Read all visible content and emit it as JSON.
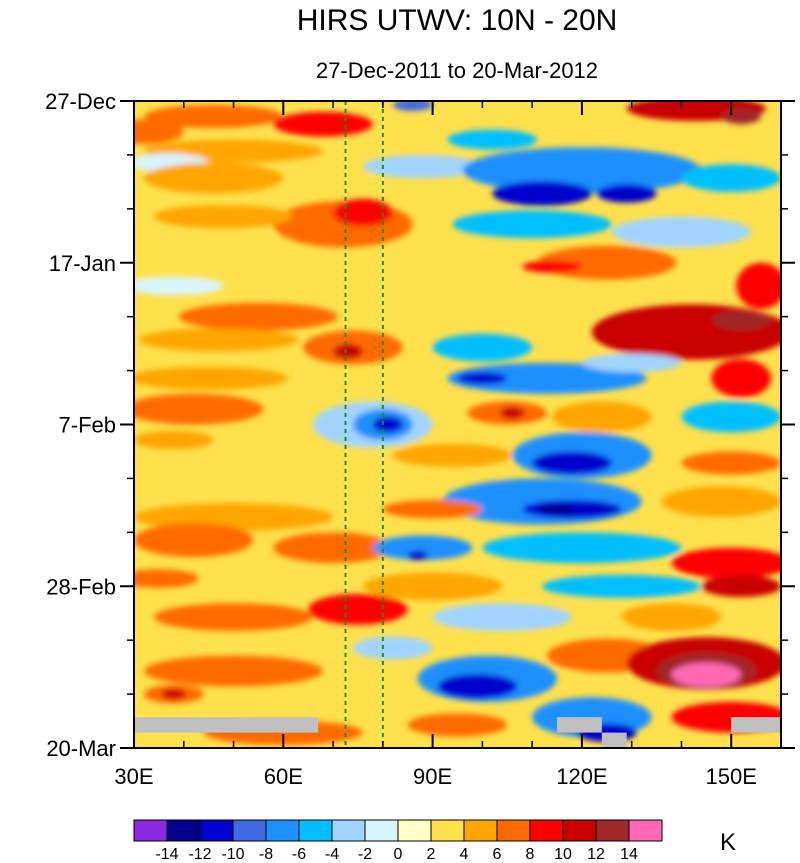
{
  "chart_data": {
    "type": "heatmap",
    "title": "HIRS UTWV: 10N - 20N",
    "subtitle": "27-Dec-2011 to 20-Mar-2012",
    "xlabel": "",
    "ylabel": "",
    "xlim": [
      30,
      160
    ],
    "ylim_days": [
      0,
      84
    ],
    "y_direction": "downward in time (27-Dec at top, 20-Mar at bottom)",
    "x_ticks": [
      {
        "value": 30,
        "label": "30E"
      },
      {
        "value": 60,
        "label": "60E"
      },
      {
        "value": 90,
        "label": "90E"
      },
      {
        "value": 120,
        "label": "120E"
      },
      {
        "value": 150,
        "label": "150E"
      }
    ],
    "y_ticks": [
      {
        "day": 0,
        "label": "27-Dec"
      },
      {
        "day": 21,
        "label": "17-Jan"
      },
      {
        "day": 42,
        "label": "7-Feb"
      },
      {
        "day": 63,
        "label": "28-Feb"
      },
      {
        "day": 84,
        "label": "20-Mar"
      }
    ],
    "reference_lines": [
      {
        "longitude": 72.5,
        "style": "dashed",
        "color": "#228b22"
      },
      {
        "longitude": 80.0,
        "style": "dashed",
        "color": "#228b22"
      }
    ],
    "colorbar": {
      "units": "K",
      "levels": [
        -14,
        -12,
        -10,
        -8,
        -6,
        -4,
        -2,
        0,
        2,
        4,
        6,
        8,
        10,
        12,
        14
      ],
      "colors": [
        "#8a2be2",
        "#00008b",
        "#0000cd",
        "#4169e1",
        "#1e90ff",
        "#00bfff",
        "#a0d4ff",
        "#d6f5ff",
        "#ffffcc",
        "#ffe14d",
        "#ffa500",
        "#ff6a00",
        "#ff0000",
        "#c80000",
        "#a02828",
        "#ff69b4"
      ]
    },
    "missing_color": "#c0c0c0",
    "missing_regions": [
      {
        "lon": [
          30,
          67
        ],
        "day": [
          80,
          82
        ]
      },
      {
        "lon": [
          115,
          124
        ],
        "day": [
          80,
          82
        ]
      },
      {
        "lon": [
          124,
          129
        ],
        "day": [
          82,
          84
        ]
      },
      {
        "lon": [
          150,
          160
        ],
        "day": [
          80,
          82
        ]
      }
    ],
    "features": [
      {
        "lon": 32,
        "day": 4,
        "rx": 8,
        "ry": 1.6,
        "value": 6
      },
      {
        "lon": 46,
        "day": 2,
        "rx": 14,
        "ry": 1.5,
        "value": 6
      },
      {
        "lon": 68,
        "day": 3,
        "rx": 10,
        "ry": 1.6,
        "value": 8
      },
      {
        "lon": 86,
        "day": 0.5,
        "rx": 4,
        "ry": 0.8,
        "value": -10
      },
      {
        "lon": 102,
        "day": 5,
        "rx": 9,
        "ry": 1.3,
        "value": -6
      },
      {
        "lon": 143,
        "day": 1,
        "rx": 14,
        "ry": 1.6,
        "value": 10
      },
      {
        "lon": 152,
        "day": 2,
        "rx": 4,
        "ry": 1,
        "value": 12
      },
      {
        "lon": 50,
        "day": 6.5,
        "rx": 18,
        "ry": 1.5,
        "value": 4
      },
      {
        "lon": 37,
        "day": 8,
        "rx": 8,
        "ry": 1.2,
        "value": -2
      },
      {
        "lon": 88,
        "day": 8.5,
        "rx": 12,
        "ry": 1.5,
        "value": -4
      },
      {
        "lon": 120,
        "day": 9,
        "rx": 24,
        "ry": 3,
        "value": -8
      },
      {
        "lon": 112,
        "day": 12,
        "rx": 10,
        "ry": 1.6,
        "value": -12
      },
      {
        "lon": 129,
        "day": 12,
        "rx": 6,
        "ry": 1.2,
        "value": -12
      },
      {
        "lon": 46,
        "day": 10,
        "rx": 14,
        "ry": 2,
        "value": 4
      },
      {
        "lon": 72,
        "day": 16,
        "rx": 14,
        "ry": 3,
        "value": 6
      },
      {
        "lon": 76,
        "day": 14.5,
        "rx": 6,
        "ry": 1.8,
        "value": 8
      },
      {
        "lon": 48,
        "day": 15,
        "rx": 14,
        "ry": 1.5,
        "value": 4
      },
      {
        "lon": 110,
        "day": 16,
        "rx": 16,
        "ry": 1.8,
        "value": -6
      },
      {
        "lon": 140,
        "day": 17,
        "rx": 14,
        "ry": 2,
        "value": -4
      },
      {
        "lon": 150,
        "day": 10,
        "rx": 10,
        "ry": 1.8,
        "value": -6
      },
      {
        "lon": 125,
        "day": 21,
        "rx": 14,
        "ry": 2.2,
        "value": 6
      },
      {
        "lon": 114,
        "day": 21.5,
        "rx": 6,
        "ry": 0.8,
        "value": 8
      },
      {
        "lon": 38,
        "day": 24,
        "rx": 10,
        "ry": 1.2,
        "value": -2
      },
      {
        "lon": 156,
        "day": 24,
        "rx": 5,
        "ry": 3,
        "value": 8
      },
      {
        "lon": 55,
        "day": 28,
        "rx": 16,
        "ry": 1.8,
        "value": 6
      },
      {
        "lon": 74,
        "day": 32,
        "rx": 10,
        "ry": 2.2,
        "value": 6
      },
      {
        "lon": 73,
        "day": 32.5,
        "rx": 3,
        "ry": 1,
        "value": 10
      },
      {
        "lon": 47,
        "day": 31,
        "rx": 16,
        "ry": 1.5,
        "value": 4
      },
      {
        "lon": 100,
        "day": 32,
        "rx": 10,
        "ry": 1.8,
        "value": -6
      },
      {
        "lon": 142,
        "day": 30,
        "rx": 20,
        "ry": 3.6,
        "value": 10
      },
      {
        "lon": 152,
        "day": 28.5,
        "rx": 6,
        "ry": 1.2,
        "value": 12
      },
      {
        "lon": 113,
        "day": 36,
        "rx": 20,
        "ry": 2,
        "value": -8
      },
      {
        "lon": 100,
        "day": 36,
        "rx": 5,
        "ry": 0.8,
        "value": -12
      },
      {
        "lon": 130,
        "day": 34,
        "rx": 10,
        "ry": 1.2,
        "value": -4
      },
      {
        "lon": 152,
        "day": 36,
        "rx": 6,
        "ry": 2.5,
        "value": 8
      },
      {
        "lon": 45,
        "day": 36,
        "rx": 16,
        "ry": 1.5,
        "value": 4
      },
      {
        "lon": 78,
        "day": 42,
        "rx": 12,
        "ry": 3,
        "value": -4
      },
      {
        "lon": 80,
        "day": 42,
        "rx": 6,
        "ry": 2,
        "value": -8
      },
      {
        "lon": 81,
        "day": 42,
        "rx": 3,
        "ry": 1,
        "value": -12
      },
      {
        "lon": 105,
        "day": 40.5,
        "rx": 8,
        "ry": 1.5,
        "value": 6
      },
      {
        "lon": 106,
        "day": 40.5,
        "rx": 2.5,
        "ry": 0.8,
        "value": 10
      },
      {
        "lon": 150,
        "day": 41,
        "rx": 10,
        "ry": 2,
        "value": -6
      },
      {
        "lon": 124,
        "day": 41,
        "rx": 10,
        "ry": 2,
        "value": 4
      },
      {
        "lon": 42,
        "day": 40,
        "rx": 14,
        "ry": 2,
        "value": 6
      },
      {
        "lon": 38,
        "day": 44,
        "rx": 8,
        "ry": 1.2,
        "value": 4
      },
      {
        "lon": 120,
        "day": 46,
        "rx": 14,
        "ry": 3,
        "value": -8
      },
      {
        "lon": 118,
        "day": 47,
        "rx": 8,
        "ry": 1.5,
        "value": -12
      },
      {
        "lon": 94,
        "day": 46,
        "rx": 12,
        "ry": 1.5,
        "value": 4
      },
      {
        "lon": 150,
        "day": 47,
        "rx": 10,
        "ry": 1.5,
        "value": 6
      },
      {
        "lon": 112,
        "day": 52,
        "rx": 20,
        "ry": 3,
        "value": -8
      },
      {
        "lon": 118,
        "day": 53,
        "rx": 10,
        "ry": 1.2,
        "value": -12
      },
      {
        "lon": 115,
        "day": 53,
        "rx": 4,
        "ry": 0.6,
        "value": -14
      },
      {
        "lon": 148,
        "day": 52,
        "rx": 12,
        "ry": 2,
        "value": 4
      },
      {
        "lon": 50,
        "day": 54,
        "rx": 20,
        "ry": 1.8,
        "value": 4
      },
      {
        "lon": 90,
        "day": 53,
        "rx": 10,
        "ry": 1.2,
        "value": 6
      },
      {
        "lon": 42,
        "day": 57,
        "rx": 12,
        "ry": 2.2,
        "value": 6
      },
      {
        "lon": 70,
        "day": 58,
        "rx": 12,
        "ry": 2,
        "value": 6
      },
      {
        "lon": 88,
        "day": 58,
        "rx": 10,
        "ry": 1.6,
        "value": -8
      },
      {
        "lon": 87,
        "day": 59,
        "rx": 2,
        "ry": 0.6,
        "value": -12
      },
      {
        "lon": 120,
        "day": 58,
        "rx": 20,
        "ry": 2,
        "value": -6
      },
      {
        "lon": 150,
        "day": 60,
        "rx": 12,
        "ry": 2,
        "value": 8
      },
      {
        "lon": 35,
        "day": 62,
        "rx": 8,
        "ry": 1.2,
        "value": 6
      },
      {
        "lon": 90,
        "day": 63,
        "rx": 14,
        "ry": 1.8,
        "value": 4
      },
      {
        "lon": 128,
        "day": 63,
        "rx": 16,
        "ry": 1.5,
        "value": -6
      },
      {
        "lon": 152,
        "day": 63,
        "rx": 8,
        "ry": 1.4,
        "value": 10
      },
      {
        "lon": 75,
        "day": 66,
        "rx": 10,
        "ry": 2,
        "value": 8
      },
      {
        "lon": 50,
        "day": 67,
        "rx": 16,
        "ry": 1.8,
        "value": 6
      },
      {
        "lon": 104,
        "day": 67,
        "rx": 14,
        "ry": 1.8,
        "value": -4
      },
      {
        "lon": 138,
        "day": 67,
        "rx": 10,
        "ry": 1.8,
        "value": 4
      },
      {
        "lon": 125,
        "day": 72,
        "rx": 12,
        "ry": 2.2,
        "value": 6
      },
      {
        "lon": 145,
        "day": 73,
        "rx": 16,
        "ry": 3.4,
        "value": 10
      },
      {
        "lon": 145,
        "day": 74,
        "rx": 10,
        "ry": 2.4,
        "value": 12
      },
      {
        "lon": 145,
        "day": 74.5,
        "rx": 7,
        "ry": 1.6,
        "value": 14
      },
      {
        "lon": 101,
        "day": 75,
        "rx": 14,
        "ry": 3,
        "value": -8
      },
      {
        "lon": 99,
        "day": 76,
        "rx": 8,
        "ry": 1.6,
        "value": -12
      },
      {
        "lon": 82,
        "day": 71,
        "rx": 8,
        "ry": 1.5,
        "value": -4
      },
      {
        "lon": 50,
        "day": 74,
        "rx": 18,
        "ry": 2,
        "value": 6
      },
      {
        "lon": 38,
        "day": 77,
        "rx": 6,
        "ry": 1.2,
        "value": 6
      },
      {
        "lon": 38,
        "day": 77,
        "rx": 2.5,
        "ry": 0.7,
        "value": 10
      },
      {
        "lon": 122,
        "day": 80,
        "rx": 12,
        "ry": 2.6,
        "value": -8
      },
      {
        "lon": 125,
        "day": 82,
        "rx": 6,
        "ry": 1.2,
        "value": -12
      },
      {
        "lon": 95,
        "day": 81,
        "rx": 10,
        "ry": 1.5,
        "value": 6
      },
      {
        "lon": 150,
        "day": 80,
        "rx": 12,
        "ry": 2,
        "value": 8
      },
      {
        "lon": 60,
        "day": 82,
        "rx": 16,
        "ry": 1.6,
        "value": 6
      }
    ]
  }
}
